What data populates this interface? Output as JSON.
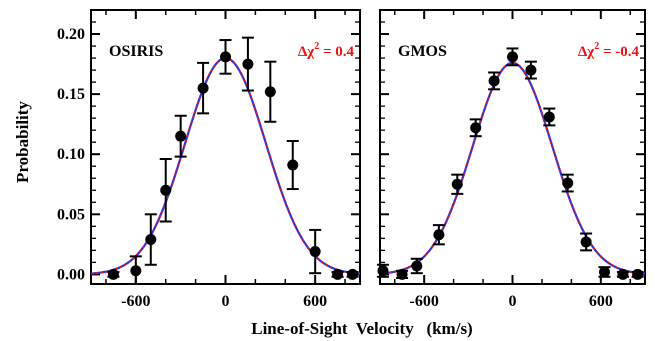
{
  "chart_data": [
    {
      "type": "scatter",
      "panel_label": "OSIRIS",
      "annotation": {
        "prefix": "Δχ",
        "superscript": "2",
        "suffix": " = 0.4"
      },
      "xlim": [
        -900,
        900
      ],
      "ylim": [
        -0.008,
        0.22
      ],
      "x_ticks": [
        -600,
        0,
        600
      ],
      "y_ticks": [
        0.0,
        0.05,
        0.1,
        0.15,
        0.2
      ],
      "y_tick_labels": [
        "0.00",
        "0.05",
        "0.10",
        "0.15",
        "0.20"
      ],
      "ylabel": "Probability",
      "points": [
        {
          "x": -750,
          "y": 0.0,
          "err": 0.002
        },
        {
          "x": -600,
          "y": 0.003,
          "err": 0.012
        },
        {
          "x": -500,
          "y": 0.029,
          "err": 0.021
        },
        {
          "x": -400,
          "y": 0.07,
          "err": 0.026
        },
        {
          "x": -300,
          "y": 0.115,
          "err": 0.017
        },
        {
          "x": -150,
          "y": 0.155,
          "err": 0.021
        },
        {
          "x": 0,
          "y": 0.181,
          "err": 0.014
        },
        {
          "x": 150,
          "y": 0.175,
          "err": 0.022
        },
        {
          "x": 300,
          "y": 0.152,
          "err": 0.025
        },
        {
          "x": 450,
          "y": 0.091,
          "err": 0.02
        },
        {
          "x": 600,
          "y": 0.019,
          "err": 0.018
        },
        {
          "x": 750,
          "y": 0.0,
          "err": 0.002
        },
        {
          "x": 850,
          "y": 0.0,
          "err": 0.002
        }
      ],
      "model": {
        "mean": 0,
        "sigma": 270,
        "amplitude": 0.18
      }
    },
    {
      "type": "scatter",
      "panel_label": "GMOS",
      "annotation": {
        "prefix": "Δχ",
        "superscript": "2",
        "suffix": " = -0.4"
      },
      "xlim": [
        -900,
        900
      ],
      "ylim": [
        -0.008,
        0.22
      ],
      "x_ticks": [
        -600,
        0,
        600
      ],
      "y_ticks": [
        0.0,
        0.05,
        0.1,
        0.15,
        0.2
      ],
      "points": [
        {
          "x": -880,
          "y": 0.003,
          "err": 0.005
        },
        {
          "x": -750,
          "y": 0.0,
          "err": 0.003
        },
        {
          "x": -650,
          "y": 0.007,
          "err": 0.006
        },
        {
          "x": -500,
          "y": 0.033,
          "err": 0.008
        },
        {
          "x": -375,
          "y": 0.075,
          "err": 0.008
        },
        {
          "x": -250,
          "y": 0.122,
          "err": 0.007
        },
        {
          "x": -125,
          "y": 0.161,
          "err": 0.007
        },
        {
          "x": 0,
          "y": 0.181,
          "err": 0.007
        },
        {
          "x": 125,
          "y": 0.17,
          "err": 0.007
        },
        {
          "x": 250,
          "y": 0.131,
          "err": 0.007
        },
        {
          "x": 375,
          "y": 0.076,
          "err": 0.007
        },
        {
          "x": 500,
          "y": 0.027,
          "err": 0.007
        },
        {
          "x": 625,
          "y": 0.002,
          "err": 0.004
        },
        {
          "x": 750,
          "y": 0.0,
          "err": 0.002
        },
        {
          "x": 850,
          "y": 0.0,
          "err": 0.002
        }
      ],
      "model": {
        "mean": 0,
        "sigma": 270,
        "amplitude": 0.176
      }
    }
  ],
  "shared_xlabel": "Line-of-Sight  Velocity   (km/s)",
  "colors": {
    "model_blue": "#2233ee",
    "model_red": "#ee1111",
    "points": "#000000",
    "annotation": "#ee1111"
  }
}
